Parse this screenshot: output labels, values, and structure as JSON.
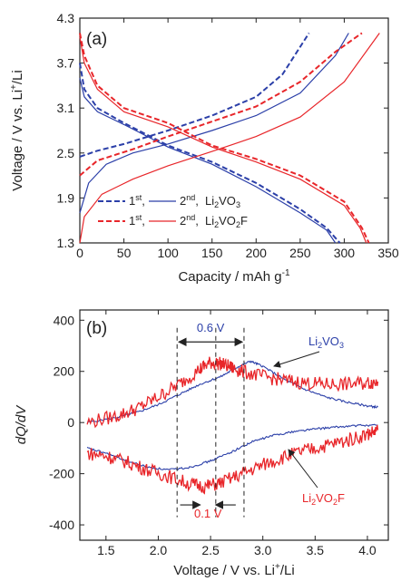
{
  "colors": {
    "blue": "#2b3fa8",
    "red": "#e8262a",
    "axis": "#222222"
  },
  "chart_data": [
    {
      "type": "line",
      "panel_label": "(a)",
      "xlabel": "Capacity / mAh g",
      "xlabel_sup": "-1",
      "ylabel": "Voltage / V vs. Li",
      "ylabel_sup": "+",
      "ylabel_tail": "/Li",
      "xlim": [
        0,
        350
      ],
      "ylim": [
        1.3,
        4.3
      ],
      "xticks": [
        0,
        50,
        100,
        150,
        200,
        250,
        300,
        350
      ],
      "yticks": [
        1.3,
        1.9,
        2.5,
        3.1,
        3.7,
        4.3
      ],
      "yticklabels": [
        "1.3",
        "1.9",
        "2.5",
        "3.1",
        "3.7",
        "4.3"
      ],
      "legend": {
        "rows": [
          {
            "color": "#2b3fa8",
            "first": "1",
            "first_sup": "st",
            "second": "2",
            "second_sup": "nd",
            "material_pre": "Li",
            "material_sub": "2",
            "material_post": "VO",
            "material_sub2": "3",
            "material_end": ""
          },
          {
            "color": "#e8262a",
            "first": "1",
            "first_sup": "st",
            "second": "2",
            "second_sup": "nd",
            "material_pre": "Li",
            "material_sub": "2",
            "material_post": "VO",
            "material_sub2": "2",
            "material_end": "F"
          }
        ]
      },
      "series": [
        {
          "material": "Li2VO3",
          "cycle": 1,
          "branch": "charge",
          "color": "#2b3fa8",
          "dash": true,
          "points": [
            [
              0,
              2.45
            ],
            [
              20,
              2.53
            ],
            [
              50,
              2.62
            ],
            [
              100,
              2.8
            ],
            [
              150,
              3.0
            ],
            [
              200,
              3.25
            ],
            [
              230,
              3.55
            ],
            [
              260,
              4.1
            ]
          ]
        },
        {
          "material": "Li2VO3",
          "cycle": 2,
          "branch": "charge",
          "color": "#2b3fa8",
          "dash": false,
          "points": [
            [
              0,
              1.7
            ],
            [
              10,
              2.1
            ],
            [
              30,
              2.35
            ],
            [
              60,
              2.5
            ],
            [
              100,
              2.62
            ],
            [
              150,
              2.8
            ],
            [
              200,
              3.0
            ],
            [
              250,
              3.3
            ],
            [
              290,
              3.8
            ],
            [
              305,
              4.1
            ]
          ]
        },
        {
          "material": "Li2VO3",
          "cycle": 1,
          "branch": "discharge",
          "color": "#2b3fa8",
          "dash": true,
          "points": [
            [
              0,
              3.7
            ],
            [
              5,
              3.35
            ],
            [
              20,
              3.1
            ],
            [
              50,
              2.9
            ],
            [
              100,
              2.6
            ],
            [
              150,
              2.38
            ],
            [
              200,
              2.1
            ],
            [
              250,
              1.75
            ],
            [
              280,
              1.5
            ],
            [
              295,
              1.3
            ]
          ]
        },
        {
          "material": "Li2VO3",
          "cycle": 2,
          "branch": "discharge",
          "color": "#2b3fa8",
          "dash": false,
          "points": [
            [
              0,
              3.5
            ],
            [
              5,
              3.25
            ],
            [
              20,
              3.05
            ],
            [
              50,
              2.88
            ],
            [
              100,
              2.58
            ],
            [
              150,
              2.35
            ],
            [
              200,
              2.05
            ],
            [
              250,
              1.7
            ],
            [
              280,
              1.47
            ],
            [
              290,
              1.3
            ]
          ]
        },
        {
          "material": "Li2VO2F",
          "cycle": 1,
          "branch": "charge",
          "color": "#e8262a",
          "dash": true,
          "points": [
            [
              0,
              2.2
            ],
            [
              20,
              2.4
            ],
            [
              60,
              2.55
            ],
            [
              100,
              2.72
            ],
            [
              150,
              2.92
            ],
            [
              200,
              3.12
            ],
            [
              250,
              3.45
            ],
            [
              290,
              3.85
            ],
            [
              320,
              4.1
            ]
          ]
        },
        {
          "material": "Li2VO2F",
          "cycle": 2,
          "branch": "charge",
          "color": "#e8262a",
          "dash": false,
          "points": [
            [
              0,
              1.3
            ],
            [
              5,
              1.65
            ],
            [
              25,
              1.95
            ],
            [
              60,
              2.15
            ],
            [
              100,
              2.33
            ],
            [
              150,
              2.52
            ],
            [
              200,
              2.72
            ],
            [
              250,
              2.98
            ],
            [
              300,
              3.45
            ],
            [
              340,
              4.1
            ]
          ]
        },
        {
          "material": "Li2VO2F",
          "cycle": 1,
          "branch": "discharge",
          "color": "#e8262a",
          "dash": true,
          "points": [
            [
              0,
              4.1
            ],
            [
              5,
              3.8
            ],
            [
              20,
              3.4
            ],
            [
              50,
              3.1
            ],
            [
              100,
              2.9
            ],
            [
              150,
              2.6
            ],
            [
              200,
              2.42
            ],
            [
              250,
              2.2
            ],
            [
              300,
              1.85
            ],
            [
              320,
              1.5
            ],
            [
              328,
              1.3
            ]
          ]
        },
        {
          "material": "Li2VO2F",
          "cycle": 2,
          "branch": "discharge",
          "color": "#e8262a",
          "dash": false,
          "points": [
            [
              0,
              4.05
            ],
            [
              5,
              3.7
            ],
            [
              20,
              3.35
            ],
            [
              50,
              3.05
            ],
            [
              100,
              2.85
            ],
            [
              150,
              2.58
            ],
            [
              200,
              2.38
            ],
            [
              250,
              2.15
            ],
            [
              300,
              1.8
            ],
            [
              318,
              1.5
            ],
            [
              325,
              1.3
            ]
          ]
        }
      ]
    },
    {
      "type": "line",
      "panel_label": "(b)",
      "xlabel": "Voltage / V vs. Li",
      "xlabel_sup": "+",
      "xlabel_tail": "/Li",
      "ylabel": "dQ/dV",
      "xlim": [
        1.25,
        4.2
      ],
      "ylim": [
        -460,
        440
      ],
      "xticks": [
        1.5,
        2.0,
        2.5,
        3.0,
        3.5,
        4.0
      ],
      "xticklabels": [
        "1.5",
        "2.0",
        "2.5",
        "3.0",
        "3.5",
        "4.0"
      ],
      "yticks": [
        -400,
        -200,
        0,
        200,
        400
      ],
      "yticklabels": [
        "-400",
        "-200",
        "0",
        "200",
        "400"
      ],
      "series": [
        {
          "material": "Li2VO3",
          "branch": "charge",
          "color": "#2b3fa8",
          "points": [
            [
              1.32,
              0
            ],
            [
              1.6,
              20
            ],
            [
              1.8,
              40
            ],
            [
              2.0,
              70
            ],
            [
              2.2,
              110
            ],
            [
              2.4,
              150
            ],
            [
              2.6,
              180
            ],
            [
              2.75,
              215
            ],
            [
              2.88,
              240
            ],
            [
              3.0,
              220
            ],
            [
              3.2,
              170
            ],
            [
              3.4,
              130
            ],
            [
              3.6,
              100
            ],
            [
              3.8,
              80
            ],
            [
              4.0,
              65
            ],
            [
              4.1,
              60
            ]
          ]
        },
        {
          "material": "Li2VO3",
          "branch": "discharge",
          "color": "#2b3fa8",
          "points": [
            [
              1.32,
              -100
            ],
            [
              1.5,
              -120
            ],
            [
              1.7,
              -150
            ],
            [
              1.9,
              -175
            ],
            [
              2.1,
              -185
            ],
            [
              2.3,
              -175
            ],
            [
              2.5,
              -150
            ],
            [
              2.7,
              -115
            ],
            [
              2.9,
              -75
            ],
            [
              3.1,
              -50
            ],
            [
              3.3,
              -35
            ],
            [
              3.5,
              -25
            ],
            [
              3.7,
              -18
            ],
            [
              3.9,
              -12
            ],
            [
              4.1,
              -10
            ]
          ]
        },
        {
          "material": "Li2VO2F",
          "branch": "charge",
          "color": "#e8262a",
          "points": [
            [
              1.32,
              0
            ],
            [
              1.6,
              25
            ],
            [
              1.8,
              55
            ],
            [
              2.0,
              100
            ],
            [
              2.2,
              150
            ],
            [
              2.4,
              210
            ],
            [
              2.5,
              235
            ],
            [
              2.6,
              230
            ],
            [
              2.7,
              215
            ],
            [
              2.8,
              200
            ],
            [
              3.0,
              180
            ],
            [
              3.2,
              165
            ],
            [
              3.4,
              155
            ],
            [
              3.6,
              150
            ],
            [
              3.8,
              150
            ],
            [
              4.0,
              155
            ],
            [
              4.1,
              160
            ]
          ]
        },
        {
          "material": "Li2VO2F",
          "branch": "discharge",
          "color": "#e8262a",
          "points": [
            [
              1.32,
              -120
            ],
            [
              1.5,
              -130
            ],
            [
              1.7,
              -155
            ],
            [
              1.9,
              -185
            ],
            [
              2.1,
              -210
            ],
            [
              2.3,
              -240
            ],
            [
              2.45,
              -250
            ],
            [
              2.6,
              -235
            ],
            [
              2.8,
              -200
            ],
            [
              3.0,
              -165
            ],
            [
              3.2,
              -135
            ],
            [
              3.4,
              -110
            ],
            [
              3.6,
              -90
            ],
            [
              3.8,
              -70
            ],
            [
              4.0,
              -45
            ],
            [
              4.1,
              -30
            ]
          ]
        }
      ],
      "annotations": {
        "peak_shift_label": "0.6 V",
        "peak_shift_from": 2.18,
        "peak_shift_to": 2.82,
        "valley_shift_label": "0.1 V",
        "valley_shift_from": 2.4,
        "valley_shift_to": 2.55,
        "dashed_lines_x": [
          2.18,
          2.55,
          2.82
        ],
        "label_vo3_pre": "Li",
        "label_vo3_sub": "2",
        "label_vo3_post": "VO",
        "label_vo3_sub2": "3",
        "label_vo2f_pre": "Li",
        "label_vo2f_sub": "2",
        "label_vo2f_post": "VO",
        "label_vo2f_sub2": "2",
        "label_vo2f_end": "F"
      }
    }
  ]
}
